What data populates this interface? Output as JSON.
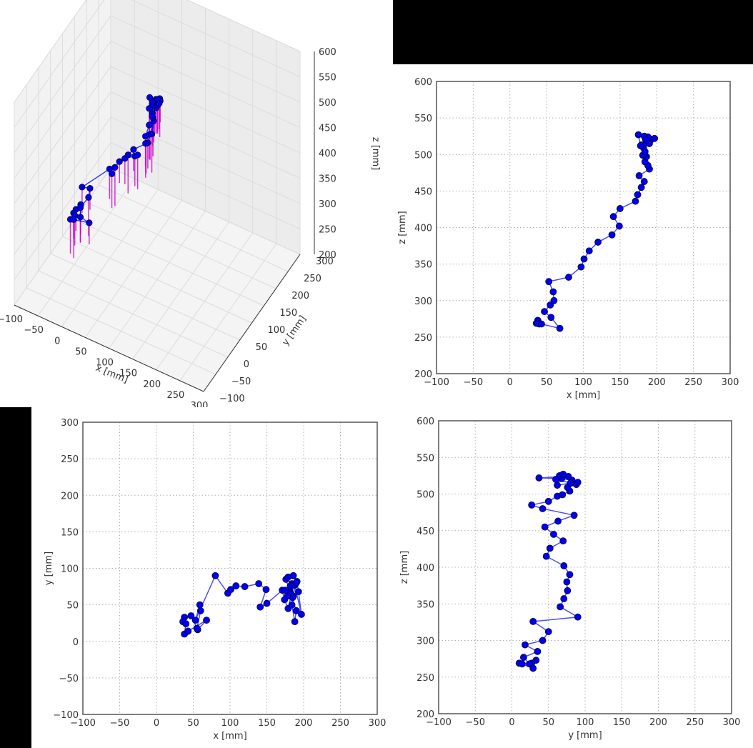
{
  "chart_data": [
    {
      "id": "plot3d",
      "type": "scatter3d",
      "title": "",
      "xlabel": "x [mm]",
      "ylabel": "y [mm]",
      "zlabel": "z [mm]",
      "xlim": [
        -100,
        300
      ],
      "ylim": [
        -100,
        300
      ],
      "zlim": [
        200,
        600
      ],
      "x_ticks": [
        "−100",
        "−50",
        "0",
        "50",
        "100",
        "150",
        "200",
        "250",
        "300"
      ],
      "y_ticks": [
        "−100",
        "−50",
        "0",
        "50",
        "100",
        "150",
        "200",
        "250",
        "300"
      ],
      "z_ticks": [
        "200",
        "250",
        "300",
        "350",
        "400",
        "450",
        "500",
        "550",
        "600"
      ],
      "grid": true,
      "line_color": "#0000ff",
      "marker_color": "#0000ff",
      "stem_color": "#cc00cc",
      "note": "trajectory points with vertical stems dropped toward the floor"
    },
    {
      "id": "plot_xz",
      "type": "line",
      "xlabel": "x [mm]",
      "ylabel": "z [mm]",
      "xlim": [
        -100,
        300
      ],
      "ylim": [
        200,
        600
      ],
      "x_ticks": [
        "−100",
        "−50",
        "0",
        "50",
        "100",
        "150",
        "200",
        "250",
        "300"
      ],
      "y_ticks": [
        "200",
        "250",
        "300",
        "350",
        "400",
        "450",
        "500",
        "550",
        "600"
      ],
      "grid": true,
      "grid_style": "dotted",
      "line_color": "#0000ff",
      "marker": "o"
    },
    {
      "id": "plot_xy",
      "type": "line",
      "xlabel": "x [mm]",
      "ylabel": "y [mm]",
      "xlim": [
        -100,
        300
      ],
      "ylim": [
        -100,
        300
      ],
      "x_ticks": [
        "−100",
        "−50",
        "0",
        "50",
        "100",
        "150",
        "200",
        "250",
        "300"
      ],
      "y_ticks": [
        "−100",
        "−50",
        "0",
        "50",
        "100",
        "150",
        "200",
        "250",
        "300"
      ],
      "grid": true,
      "grid_style": "dotted",
      "line_color": "#0000ff",
      "marker": "o"
    },
    {
      "id": "plot_yz",
      "type": "line",
      "xlabel": "y [mm]",
      "ylabel": "z [mm]",
      "xlim": [
        -100,
        300
      ],
      "ylim": [
        200,
        600
      ],
      "x_ticks": [
        "−100",
        "−50",
        "0",
        "50",
        "100",
        "150",
        "200",
        "250",
        "300"
      ],
      "y_ticks": [
        "200",
        "250",
        "300",
        "350",
        "400",
        "450",
        "500",
        "550",
        "600"
      ],
      "grid": true,
      "grid_style": "dotted",
      "line_color": "#0000ff",
      "marker": "o"
    }
  ],
  "trajectory": {
    "x": [
      38,
      36,
      40,
      38,
      43,
      68,
      56,
      47,
      55,
      60,
      59,
      53,
      80,
      97,
      101,
      108,
      120,
      139,
      149,
      141,
      150,
      171,
      174,
      179,
      183,
      176,
      190,
      188,
      184,
      186,
      181,
      184,
      182,
      179,
      186,
      191,
      193,
      197,
      188,
      183,
      185,
      190,
      178,
      175
    ],
    "y": [
      33,
      27,
      24,
      10,
      14,
      29,
      16,
      35,
      18,
      42,
      50,
      29,
      90,
      66,
      71,
      76,
      75,
      79,
      71,
      47,
      52,
      70,
      57,
      45,
      63,
      85,
      42,
      27,
      50,
      62,
      69,
      79,
      76,
      88,
      90,
      82,
      68,
      37,
      77,
      65,
      60,
      80,
      62,
      70
    ],
    "z": [
      273,
      269,
      268,
      269,
      268,
      262,
      277,
      285,
      294,
      300,
      312,
      326,
      332,
      346,
      357,
      368,
      380,
      390,
      402,
      415,
      426,
      436,
      445,
      455,
      463,
      471,
      480,
      485,
      490,
      497,
      499,
      504,
      509,
      513,
      516,
      519,
      521,
      522,
      524,
      525,
      520,
      515,
      512,
      527
    ]
  }
}
